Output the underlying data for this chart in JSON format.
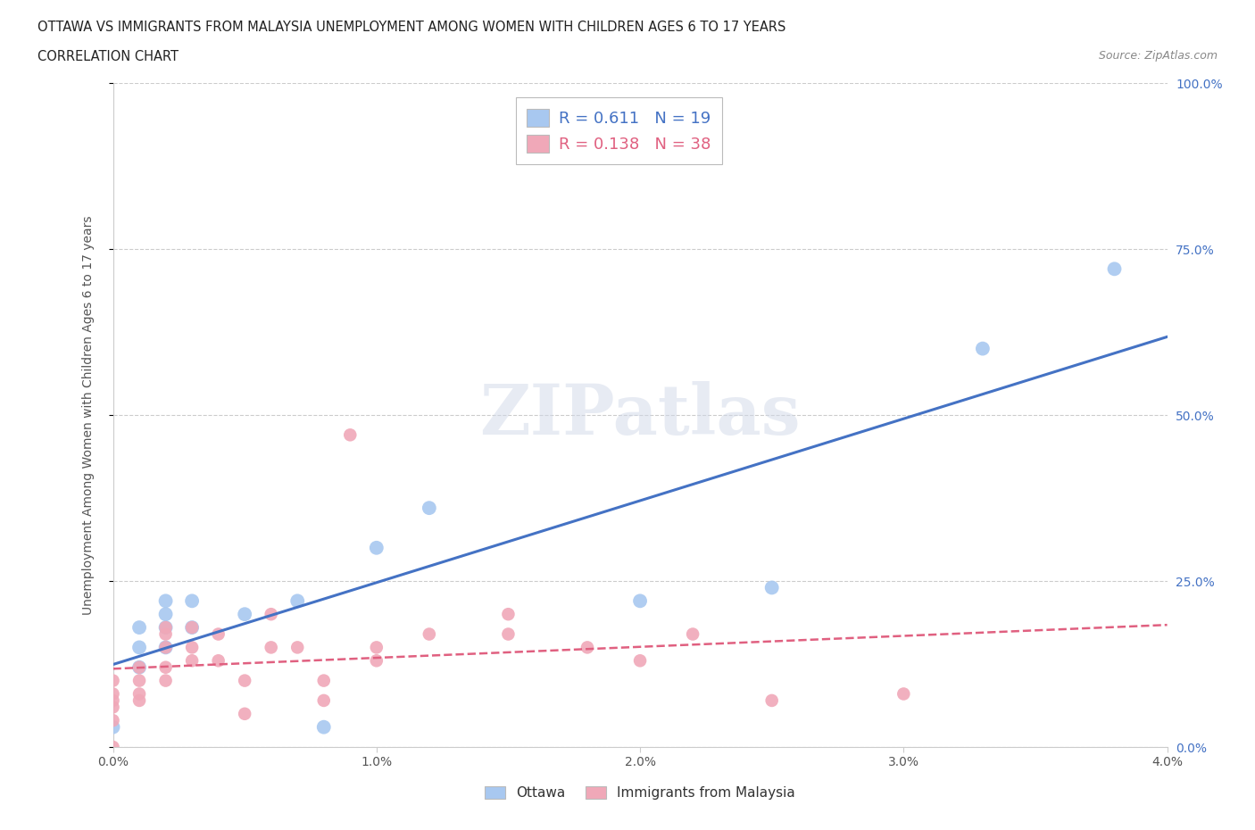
{
  "title_line1": "OTTAWA VS IMMIGRANTS FROM MALAYSIA UNEMPLOYMENT AMONG WOMEN WITH CHILDREN AGES 6 TO 17 YEARS",
  "title_line2": "CORRELATION CHART",
  "source": "Source: ZipAtlas.com",
  "ylabel": "Unemployment Among Women with Children Ages 6 to 17 years",
  "xlim": [
    0.0,
    0.04
  ],
  "ylim": [
    0.0,
    1.0
  ],
  "xticks": [
    0.0,
    0.01,
    0.02,
    0.03,
    0.04
  ],
  "xtick_labels": [
    "0.0%",
    "1.0%",
    "2.0%",
    "3.0%",
    "4.0%"
  ],
  "yticks": [
    0.0,
    0.25,
    0.5,
    0.75,
    1.0
  ],
  "ytick_labels": [
    "0.0%",
    "25.0%",
    "50.0%",
    "75.0%",
    "100.0%"
  ],
  "watermark": "ZIPatlas",
  "ottawa_color": "#a8c8f0",
  "malaysia_color": "#f0a8b8",
  "ottawa_line_color": "#4472c4",
  "malaysia_line_color": "#e06080",
  "R_ottawa": 0.611,
  "N_ottawa": 19,
  "R_malaysia": 0.138,
  "N_malaysia": 38,
  "legend_labels": [
    "Ottawa",
    "Immigrants from Malaysia"
  ],
  "ottawa_x": [
    0.0,
    0.001,
    0.001,
    0.001,
    0.002,
    0.002,
    0.002,
    0.002,
    0.003,
    0.003,
    0.005,
    0.007,
    0.008,
    0.01,
    0.012,
    0.02,
    0.025,
    0.033,
    0.038
  ],
  "ottawa_y": [
    0.03,
    0.12,
    0.15,
    0.18,
    0.15,
    0.18,
    0.2,
    0.22,
    0.18,
    0.22,
    0.2,
    0.22,
    0.03,
    0.3,
    0.36,
    0.22,
    0.24,
    0.6,
    0.72
  ],
  "malaysia_x": [
    0.0,
    0.0,
    0.0,
    0.0,
    0.0,
    0.0,
    0.001,
    0.001,
    0.001,
    0.001,
    0.002,
    0.002,
    0.002,
    0.002,
    0.002,
    0.003,
    0.003,
    0.003,
    0.004,
    0.004,
    0.005,
    0.005,
    0.006,
    0.006,
    0.007,
    0.008,
    0.008,
    0.009,
    0.01,
    0.01,
    0.012,
    0.015,
    0.015,
    0.018,
    0.02,
    0.022,
    0.025,
    0.03
  ],
  "malaysia_y": [
    0.0,
    0.04,
    0.06,
    0.07,
    0.08,
    0.1,
    0.07,
    0.08,
    0.1,
    0.12,
    0.1,
    0.12,
    0.15,
    0.17,
    0.18,
    0.13,
    0.15,
    0.18,
    0.13,
    0.17,
    0.05,
    0.1,
    0.15,
    0.2,
    0.15,
    0.07,
    0.1,
    0.47,
    0.13,
    0.15,
    0.17,
    0.17,
    0.2,
    0.15,
    0.13,
    0.17,
    0.07,
    0.08
  ]
}
